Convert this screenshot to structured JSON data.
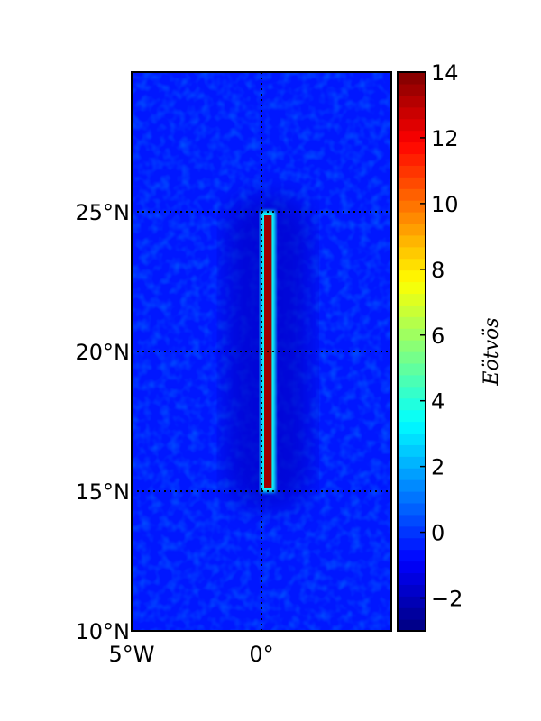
{
  "chart_data": {
    "type": "heatmap",
    "title": "",
    "projection": "cylindrical",
    "lon_range": [
      -5,
      5
    ],
    "lat_range": [
      10,
      30
    ],
    "lat_ticks": [
      {
        "value": 10,
        "label": "10°N"
      },
      {
        "value": 15,
        "label": "15°N"
      },
      {
        "value": 20,
        "label": "20°N"
      },
      {
        "value": 25,
        "label": "25°N"
      }
    ],
    "lon_ticks": [
      {
        "value": -5,
        "label": "5°W"
      },
      {
        "value": 0,
        "label": "0°"
      }
    ],
    "gridlines_dotted": true,
    "background_value": -0.5,
    "anomaly": {
      "lon_range": [
        0,
        0.5
      ],
      "lat_range": [
        15,
        25
      ],
      "peak_value": 13.5,
      "edge_value": 3.5,
      "halo_value": -1.8
    },
    "colorbar": {
      "label": "Eötvös",
      "vmin": -3,
      "vmax": 14,
      "colormap": "jet",
      "ticks": [
        {
          "value": -2,
          "label": "−2"
        },
        {
          "value": 0,
          "label": "0"
        },
        {
          "value": 2,
          "label": "2"
        },
        {
          "value": 4,
          "label": "4"
        },
        {
          "value": 6,
          "label": "6"
        },
        {
          "value": 8,
          "label": "8"
        },
        {
          "value": 10,
          "label": "10"
        },
        {
          "value": 12,
          "label": "12"
        },
        {
          "value": 14,
          "label": "14"
        }
      ]
    }
  }
}
